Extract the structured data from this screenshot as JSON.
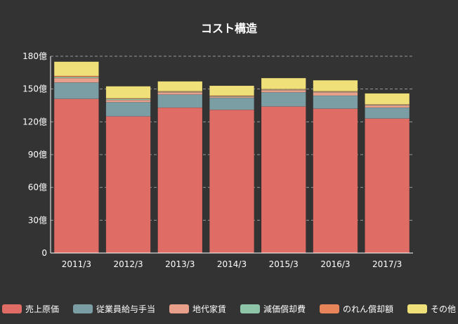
{
  "chart_data": {
    "type": "bar",
    "stacked": true,
    "title": "コスト構造",
    "xlabel": "",
    "ylabel": "",
    "categories": [
      "2011/3",
      "2012/3",
      "2013/3",
      "2014/3",
      "2015/3",
      "2016/3",
      "2017/3"
    ],
    "y_ticks": [
      "0",
      "30億",
      "60億",
      "90億",
      "120億",
      "150億",
      "180億"
    ],
    "ylim": [
      0,
      180
    ],
    "grid": true,
    "legend_position": "bottom",
    "series": [
      {
        "name": "売上原価",
        "color": "#e06c66",
        "values": [
          141,
          125,
          133,
          131,
          134,
          132,
          123
        ]
      },
      {
        "name": "従業員給与手当",
        "color": "#7b9ea5",
        "values": [
          15,
          13,
          12,
          11,
          13,
          12,
          10
        ]
      },
      {
        "name": "地代家賃",
        "color": "#e8a08a",
        "values": [
          4,
          2,
          2,
          1,
          2,
          3,
          2
        ]
      },
      {
        "name": "減価償却費",
        "color": "#8ec5a8",
        "values": [
          1,
          1,
          0.5,
          0.5,
          0.5,
          0.5,
          0.5
        ]
      },
      {
        "name": "のれん償却額",
        "color": "#e8845a",
        "values": [
          1,
          0.5,
          0.5,
          0.5,
          0.5,
          0.5,
          0.5
        ]
      },
      {
        "name": "その他",
        "color": "#f0e07a",
        "values": [
          13,
          11,
          9,
          9,
          10,
          10,
          10
        ]
      }
    ]
  }
}
